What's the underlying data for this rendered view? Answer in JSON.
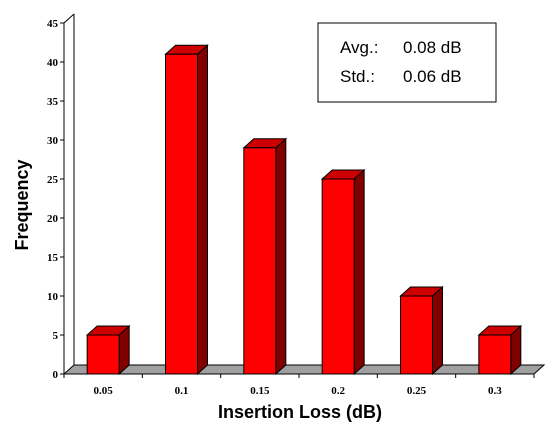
{
  "chart_data": {
    "type": "bar",
    "categories": [
      "0.05",
      "0.1",
      "0.15",
      "0.2",
      "0.25",
      "0.3"
    ],
    "values": [
      5,
      41,
      29,
      25,
      10,
      5
    ],
    "xlabel": "Insertion Loss (dB)",
    "ylabel": "Frequency",
    "ylim": [
      0,
      45
    ],
    "yticks": [
      "0",
      "5",
      "10",
      "15",
      "20",
      "25",
      "30",
      "35",
      "40",
      "45"
    ],
    "grid": false,
    "bar_style": "3d",
    "colors": {
      "bar_front": "#ff0000",
      "bar_side": "#800000",
      "bar_top": "#cc0000",
      "floor": "#a0a0a0"
    },
    "annotations": {
      "avg_label": "Avg.:",
      "avg_value": "0.08 dB",
      "std_label": "Std.:",
      "std_value": "0.06 dB"
    }
  }
}
